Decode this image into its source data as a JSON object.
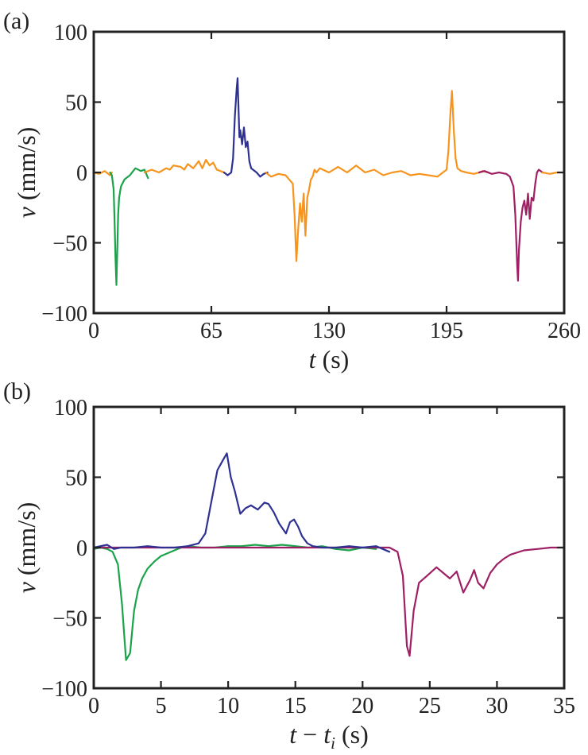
{
  "chart_data": [
    {
      "type": "line",
      "panel_label": "(a)",
      "xlabel": {
        "var": "t",
        "unit": " (s)"
      },
      "ylabel": {
        "var": "v",
        "unit": " (mm/s)"
      },
      "xlim": [
        0,
        260
      ],
      "ylim": [
        -100,
        100
      ],
      "xticks": [
        0,
        65,
        130,
        195,
        260
      ],
      "xtick_labels": [
        "0",
        "65",
        "130",
        "195",
        "260"
      ],
      "yticks": [
        -100,
        -50,
        0,
        50,
        100
      ],
      "ytick_labels": [
        "−100",
        "−50",
        "0",
        "50",
        "100"
      ],
      "grid": false,
      "legend": "none",
      "series": [
        {
          "color": "#F7941D",
          "x": [
            0,
            3,
            6,
            9,
            10
          ],
          "y": [
            0,
            -1,
            1,
            -2,
            0
          ]
        },
        {
          "color": "#1BA34B",
          "x": [
            9,
            10,
            11,
            11.5,
            12,
            12.5,
            13,
            13.5,
            14,
            15,
            17,
            20,
            23,
            26,
            28,
            30
          ],
          "y": [
            0,
            -2,
            -12,
            -35,
            -60,
            -80,
            -55,
            -30,
            -18,
            -10,
            -5,
            -2,
            3,
            1,
            2,
            -4
          ]
        },
        {
          "color": "#F7941D",
          "x": [
            28,
            32,
            36,
            40,
            42,
            44,
            48,
            50,
            52,
            55,
            58,
            60,
            62,
            64,
            66,
            68,
            70,
            72
          ],
          "y": [
            0,
            2,
            0,
            3,
            2,
            5,
            4,
            2,
            6,
            3,
            8,
            3,
            9,
            5,
            7,
            2,
            1,
            0
          ]
        },
        {
          "color": "#2E3192",
          "x": [
            72,
            74,
            76,
            77,
            78,
            79,
            79.5,
            80,
            80.5,
            81,
            82,
            83,
            84,
            85,
            86,
            87,
            88,
            90,
            92,
            94,
            96
          ],
          "y": [
            0,
            -2,
            0,
            10,
            40,
            60,
            67,
            45,
            25,
            30,
            20,
            32,
            18,
            22,
            8,
            3,
            2,
            0,
            -3,
            -1,
            0
          ]
        },
        {
          "color": "#F7941D",
          "x": [
            95,
            98,
            102,
            106,
            108,
            110,
            111,
            112,
            113,
            114,
            115,
            116,
            117,
            118,
            119,
            120,
            121,
            122,
            123,
            125,
            130,
            135,
            140,
            145,
            150,
            155,
            160,
            165,
            170,
            175,
            180,
            185,
            190,
            195,
            196,
            197,
            198,
            199,
            200,
            201,
            203,
            206,
            210,
            213,
            215,
            218
          ],
          "y": [
            0,
            -3,
            -1,
            -2,
            -5,
            -8,
            -30,
            -63,
            -40,
            -22,
            -35,
            -15,
            -45,
            -18,
            -12,
            -5,
            -3,
            2,
            0,
            3,
            0,
            4,
            0,
            5,
            0,
            2,
            -2,
            0,
            1,
            -2,
            -1,
            -2,
            -3,
            2,
            15,
            40,
            58,
            30,
            10,
            3,
            1,
            0,
            -1,
            0,
            1,
            0
          ]
        },
        {
          "color": "#9E1F63",
          "x": 213,
          "y": 0
        },
        {
          "color": "#9E1F63",
          "x": [
            213,
            216,
            220,
            224,
            228,
            230,
            232,
            233,
            234,
            234.5,
            235,
            236,
            237,
            238,
            239,
            240,
            241,
            242,
            243,
            244,
            245,
            246,
            247,
            248
          ],
          "y": [
            0,
            1,
            -1,
            0,
            -1,
            -3,
            -10,
            -30,
            -65,
            -77,
            -55,
            -35,
            -25,
            -20,
            -30,
            -15,
            -33,
            -18,
            -20,
            -8,
            0,
            2,
            1,
            0
          ]
        },
        {
          "color": "#F7941D",
          "x": [
            248,
            252,
            256,
            260
          ],
          "y": [
            0,
            -1,
            0,
            0
          ]
        }
      ]
    },
    {
      "type": "line",
      "panel_label": "(b)",
      "xlabel": {
        "var": "t",
        "op": " − ",
        "var2": "t",
        "sub": "i",
        "unit": " (s)"
      },
      "ylabel": {
        "var": "v",
        "unit": " (mm/s)"
      },
      "xlim": [
        0,
        35
      ],
      "ylim": [
        -100,
        100
      ],
      "xticks": [
        0,
        5,
        10,
        15,
        20,
        25,
        30,
        35
      ],
      "xtick_labels": [
        "0",
        "5",
        "10",
        "15",
        "20",
        "25",
        "30",
        "35"
      ],
      "yticks": [
        -100,
        -50,
        0,
        50,
        100
      ],
      "ytick_labels": [
        "−100",
        "−50",
        "0",
        "50",
        "100"
      ],
      "grid": false,
      "legend": "none",
      "series": [
        {
          "color": "#1BA34B",
          "x": [
            0,
            0.5,
            1.0,
            1.4,
            1.8,
            2.1,
            2.4,
            2.7,
            3.0,
            3.3,
            3.6,
            4.0,
            4.5,
            5.0,
            5.5,
            6.0,
            6.5,
            7.0,
            8.0,
            9.0,
            10.0,
            11.0,
            12.0,
            13.0,
            14.0,
            15.0,
            16.0,
            17.0,
            18.0,
            19.0,
            20.0,
            21.0
          ],
          "y": [
            -1,
            0,
            -1,
            -3,
            -12,
            -40,
            -80,
            -75,
            -45,
            -30,
            -22,
            -15,
            -10,
            -6,
            -4,
            -2,
            0,
            1,
            0,
            0,
            1,
            1,
            2,
            1,
            2,
            1,
            0,
            1,
            -1,
            -2,
            0,
            -1
          ]
        },
        {
          "color": "#9E1F63",
          "x": [
            0,
            2,
            4,
            6,
            8,
            10,
            12,
            14,
            16,
            18,
            20,
            22,
            22.6,
            23.0,
            23.3,
            23.5,
            23.8,
            24.2,
            24.8,
            25.5,
            26.0,
            26.5,
            27.0,
            27.5,
            28.0,
            28.3,
            28.6,
            29.0,
            29.5,
            30.0,
            30.5,
            31.0,
            32.0,
            33.0,
            34.0,
            35.0
          ],
          "y": [
            0,
            0,
            0,
            0,
            0,
            0,
            0,
            0,
            0,
            0,
            0,
            0,
            -3,
            -20,
            -70,
            -77,
            -45,
            -25,
            -20,
            -14,
            -18,
            -22,
            -17,
            -32,
            -23,
            -16,
            -25,
            -29,
            -18,
            -12,
            -8,
            -5,
            -2,
            -1,
            0,
            0
          ]
        },
        {
          "color": "#2E3192",
          "x": [
            0,
            0.5,
            1.0,
            1.5,
            2.0,
            3.0,
            4.0,
            5.0,
            6.0,
            7.0,
            7.8,
            8.3,
            8.8,
            9.2,
            9.6,
            9.9,
            10.2,
            10.5,
            10.9,
            11.3,
            11.7,
            12.2,
            12.7,
            13.0,
            13.4,
            13.8,
            14.3,
            14.6,
            14.9,
            15.2,
            15.5,
            15.9,
            16.3,
            17.0,
            18.0,
            19.0,
            20.0,
            21.0,
            22.0
          ],
          "y": [
            0,
            1,
            2,
            -1,
            0,
            0,
            1,
            0,
            0,
            1,
            3,
            10,
            35,
            55,
            62,
            67,
            50,
            40,
            24,
            28,
            30,
            27,
            32,
            31,
            25,
            17,
            10,
            18,
            20,
            15,
            8,
            3,
            1,
            0,
            0,
            1,
            0,
            1,
            -3
          ]
        }
      ]
    }
  ]
}
